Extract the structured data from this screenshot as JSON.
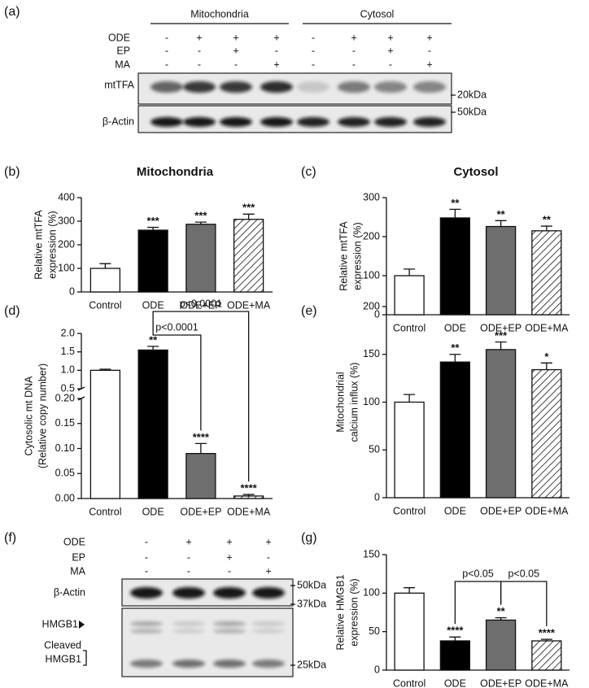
{
  "blots": [
    {
      "panel": "(a)",
      "groups": [
        "Mitochondria",
        "Cytosol"
      ],
      "treatments": [
        {
          "name": "ODE",
          "signs": [
            "-",
            "+",
            "+",
            "+",
            "-",
            "+",
            "+",
            "+"
          ]
        },
        {
          "name": "EP",
          "signs": [
            "-",
            "-",
            "+",
            "-",
            "-",
            "-",
            "+",
            "-"
          ]
        },
        {
          "name": "MA",
          "signs": [
            "-",
            "-",
            "-",
            "+",
            "-",
            "-",
            "-",
            "+"
          ]
        }
      ],
      "bands": [
        "mtTFA",
        "β-Actin"
      ],
      "markers": [
        "20kDa",
        "50kDa"
      ]
    },
    {
      "panel": "(f)",
      "groups": [],
      "treatments": [
        {
          "name": "ODE",
          "signs": [
            "-",
            "+",
            "+",
            "+"
          ]
        },
        {
          "name": "EP",
          "signs": [
            "-",
            "-",
            "+",
            "-"
          ]
        },
        {
          "name": "MA",
          "signs": [
            "-",
            "-",
            "-",
            "+"
          ]
        }
      ],
      "bands": [
        "β-Actin",
        "HMGB1",
        "Cleaved",
        "HMGB1"
      ],
      "markers": [
        "50kDa",
        "37kDa",
        "25kDa"
      ]
    }
  ],
  "chart_data": [
    {
      "type": "bar",
      "panel": "(b)",
      "title": "Mitochondria",
      "ylabel": [
        "Relative mtTFA",
        "expression (%)"
      ],
      "categories": [
        "Control",
        "ODE",
        "ODE+EP",
        "ODE+MA"
      ],
      "values": [
        100,
        262,
        287,
        308
      ],
      "errors": [
        20,
        12,
        9,
        22
      ],
      "colors": [
        "#ffffff",
        "#000000",
        "#6e6e6e",
        "#ffffff"
      ],
      "hatch": [
        false,
        false,
        false,
        true
      ],
      "annotations": [
        null,
        "***",
        "***",
        "***"
      ],
      "ylim": [
        0,
        400
      ],
      "yticks": [
        0,
        100,
        200,
        300,
        400
      ]
    },
    {
      "type": "bar",
      "panel": "(c)",
      "title": "Cytosol",
      "ylabel": [
        "Relative mtTFA",
        "expression (%)"
      ],
      "categories": [
        "Control",
        "ODE",
        "ODE+EP",
        "ODE+MA"
      ],
      "values": [
        100,
        248,
        226,
        215
      ],
      "errors": [
        17,
        22,
        15,
        12
      ],
      "colors": [
        "#ffffff",
        "#000000",
        "#6e6e6e",
        "#ffffff"
      ],
      "hatch": [
        false,
        false,
        false,
        true
      ],
      "annotations": [
        null,
        "**",
        "**",
        "**"
      ],
      "ylim": [
        0,
        300
      ],
      "yticks": [
        0,
        100,
        200,
        300
      ]
    },
    {
      "type": "bar",
      "panel": "(d)",
      "ylabel": [
        "Cytosolic mt DNA",
        "(Relative copy number)"
      ],
      "categories": [
        "Control",
        "ODE",
        "ODE+EP",
        "ODE+MA"
      ],
      "values": [
        1.0,
        1.55,
        0.09,
        0.005
      ],
      "errors": [
        0.03,
        0.1,
        0.02,
        0.003
      ],
      "colors": [
        "#ffffff",
        "#000000",
        "#6e6e6e",
        "#ffffff"
      ],
      "hatch": [
        false,
        false,
        false,
        true
      ],
      "annotations": [
        null,
        "**",
        "****",
        "****"
      ],
      "ylim": [
        0,
        2
      ],
      "ybreak": [
        0.2,
        0.5
      ],
      "yticks": [
        {
          "value": 0,
          "label": "0.00"
        },
        0.05,
        {
          "value": 0.1,
          "label": "0.10"
        },
        0.15,
        {
          "value": 0.2,
          "label": "0.20"
        },
        0.5,
        {
          "value": 1,
          "label": "1.0"
        },
        1.5,
        {
          "value": 2,
          "label": "2.0"
        }
      ],
      "brackets": [
        {
          "from": "ODE",
          "to": "ODE+MA",
          "label": "p<0.0001"
        },
        {
          "from": "ODE",
          "to": "ODE+EP",
          "label": "p<0.0001"
        }
      ]
    },
    {
      "type": "bar",
      "panel": "(e)",
      "ylabel": [
        "Mitochondrial",
        "calcium influx (%)"
      ],
      "categories": [
        "Control",
        "ODE",
        "ODE+EP",
        "ODE+MA"
      ],
      "values": [
        100,
        142,
        155,
        134
      ],
      "errors": [
        8,
        8,
        8,
        7
      ],
      "colors": [
        "#ffffff",
        "#000000",
        "#6e6e6e",
        "#ffffff"
      ],
      "hatch": [
        false,
        false,
        false,
        true
      ],
      "annotations": [
        null,
        "**",
        "***",
        "*"
      ],
      "ylim": [
        0,
        200
      ],
      "yticks": [
        0,
        50,
        100,
        150,
        200
      ]
    },
    {
      "type": "bar",
      "panel": "(g)",
      "ylabel": [
        "Relative HMGB1",
        "expression (%)"
      ],
      "categories": [
        "Control",
        "ODE",
        "ODE+EP",
        "ODE+MA"
      ],
      "values": [
        100,
        38,
        65,
        38
      ],
      "errors": [
        7,
        5,
        3,
        2
      ],
      "colors": [
        "#ffffff",
        "#000000",
        "#6e6e6e",
        "#ffffff"
      ],
      "hatch": [
        false,
        false,
        false,
        true
      ],
      "annotations": [
        null,
        "****",
        "**",
        "****"
      ],
      "ylim": [
        0,
        150
      ],
      "yticks": [
        0,
        50,
        100,
        150
      ],
      "brackets": [
        {
          "from": "ODE",
          "to": "ODE+EP",
          "label": "p<0.05"
        },
        {
          "from": "ODE+EP",
          "to": "ODE+MA",
          "label": "p<0.05"
        }
      ]
    }
  ]
}
